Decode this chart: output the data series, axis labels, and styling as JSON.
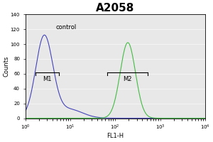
{
  "title": "A2058",
  "xlabel": "FL1-H",
  "ylabel": "Counts",
  "xlim_log": [
    0,
    4
  ],
  "ylim": [
    0,
    140
  ],
  "yticks": [
    0,
    20,
    40,
    60,
    80,
    100,
    120,
    140
  ],
  "control_label": "control",
  "control_color": "#4444bb",
  "sample_color": "#44bb44",
  "control_peak_log": 0.42,
  "control_peak_height": 110,
  "control_sigma_log": 0.19,
  "sample_peak_log": 2.28,
  "sample_peak_height": 102,
  "sample_sigma_log": 0.17,
  "m1_start_log": 0.22,
  "m1_end_log": 0.75,
  "m1_y": 62,
  "m2_start_log": 1.82,
  "m2_end_log": 2.72,
  "m2_y": 62,
  "plot_bg_color": "#e8e8e8",
  "fig_bg_color": "#ffffff",
  "title_fontsize": 11,
  "axis_fontsize": 6,
  "label_fontsize": 6,
  "tick_fontsize": 5
}
